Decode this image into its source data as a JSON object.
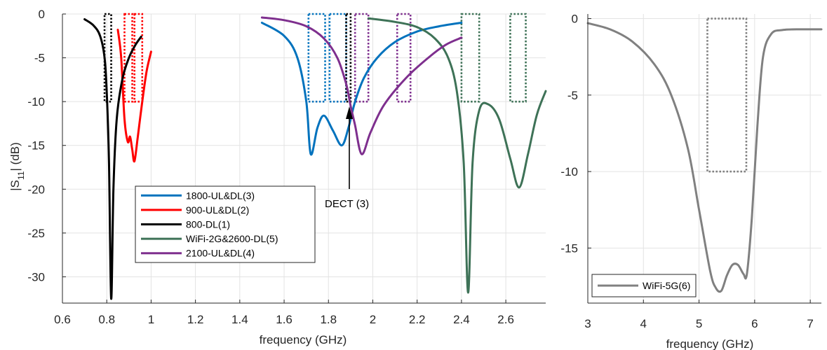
{
  "chart_data": [
    {
      "type": "line",
      "xlabel": "frequency (GHz)",
      "ylabel": "|S11| (dB)",
      "xlim": [
        0.6,
        2.78
      ],
      "ylim": [
        -33,
        0
      ],
      "xticks": [
        "0.6",
        "0.8",
        "1",
        "1.2",
        "1.4",
        "1.6",
        "1.8",
        "2",
        "2.2",
        "2.4",
        "2.6"
      ],
      "yticks": [
        "0",
        "-5",
        "-10",
        "-15",
        "-20",
        "-25",
        "-30"
      ],
      "grid": true,
      "legend_position": "lower-left-center",
      "series": [
        {
          "name": "1800-UL&DL(3)",
          "color": "#0072BD",
          "points": [
            [
              1.5,
              -1.0
            ],
            [
              1.6,
              -2.5
            ],
            [
              1.66,
              -5
            ],
            [
              1.7,
              -10
            ],
            [
              1.72,
              -16
            ],
            [
              1.75,
              -13
            ],
            [
              1.78,
              -11.6
            ],
            [
              1.82,
              -13.3
            ],
            [
              1.86,
              -15
            ],
            [
              1.89,
              -13
            ],
            [
              1.92,
              -10
            ],
            [
              1.96,
              -7.3
            ],
            [
              2.02,
              -5
            ],
            [
              2.1,
              -3.2
            ],
            [
              2.2,
              -2.0
            ],
            [
              2.3,
              -1.4
            ],
            [
              2.4,
              -1.0
            ]
          ]
        },
        {
          "name": "900-UL&DL(2)",
          "color": "#FF0000",
          "points": [
            [
              0.85,
              -1.8
            ],
            [
              0.865,
              -5
            ],
            [
              0.88,
              -12
            ],
            [
              0.895,
              -14.6
            ],
            [
              0.905,
              -14
            ],
            [
              0.915,
              -15.5
            ],
            [
              0.925,
              -16.8
            ],
            [
              0.94,
              -14
            ],
            [
              0.96,
              -10
            ],
            [
              0.98,
              -6.5
            ],
            [
              1.0,
              -4.3
            ]
          ]
        },
        {
          "name": "800-DL(1)",
          "color": "#000000",
          "points": [
            [
              0.7,
              -0.6
            ],
            [
              0.74,
              -1.3
            ],
            [
              0.77,
              -2.5
            ],
            [
              0.79,
              -5
            ],
            [
              0.8,
              -9
            ],
            [
              0.81,
              -17
            ],
            [
              0.82,
              -32.5
            ],
            [
              0.83,
              -20
            ],
            [
              0.845,
              -12
            ],
            [
              0.87,
              -7.5
            ],
            [
              0.9,
              -5
            ],
            [
              0.93,
              -3.5
            ],
            [
              0.955,
              -2.6
            ]
          ]
        },
        {
          "name": "WiFi-2G&2600-DL(5)",
          "color": "#3E7257",
          "points": [
            [
              1.98,
              -0.5
            ],
            [
              2.1,
              -0.9
            ],
            [
              2.2,
              -1.5
            ],
            [
              2.28,
              -2.8
            ],
            [
              2.34,
              -5
            ],
            [
              2.38,
              -9
            ],
            [
              2.41,
              -17
            ],
            [
              2.43,
              -31.8
            ],
            [
              2.45,
              -17
            ],
            [
              2.48,
              -11
            ],
            [
              2.52,
              -10.3
            ],
            [
              2.57,
              -12
            ],
            [
              2.62,
              -16.5
            ],
            [
              2.66,
              -19.8
            ],
            [
              2.7,
              -16
            ],
            [
              2.74,
              -11.5
            ],
            [
              2.78,
              -8.8
            ]
          ]
        },
        {
          "name": "2100-UL&DL(4)",
          "color": "#7E2F8E",
          "points": [
            [
              1.5,
              -0.4
            ],
            [
              1.6,
              -0.7
            ],
            [
              1.7,
              -1.4
            ],
            [
              1.78,
              -2.8
            ],
            [
              1.84,
              -5
            ],
            [
              1.88,
              -8
            ],
            [
              1.9,
              -10.5
            ],
            [
              1.92,
              -12.7
            ],
            [
              1.95,
              -16
            ],
            [
              1.99,
              -13.5
            ],
            [
              2.05,
              -10.4
            ],
            [
              2.15,
              -7.3
            ],
            [
              2.25,
              -5
            ],
            [
              2.33,
              -3.5
            ],
            [
              2.4,
              -2.7
            ]
          ]
        }
      ],
      "bands": [
        {
          "color": "#000000",
          "x": [
            0.79,
            0.82
          ],
          "y": [
            -10,
            0
          ]
        },
        {
          "color": "#FF0000",
          "x": [
            0.88,
            0.915
          ],
          "y": [
            -10,
            0
          ]
        },
        {
          "color": "#FF0000",
          "x": [
            0.925,
            0.96
          ],
          "y": [
            -10,
            0
          ]
        },
        {
          "color": "#0072BD",
          "x": [
            1.71,
            1.785
          ],
          "y": [
            -10,
            0
          ]
        },
        {
          "color": "#0072BD",
          "x": [
            1.805,
            1.88
          ],
          "y": [
            -10,
            0
          ]
        },
        {
          "color": "#000000",
          "x": [
            1.88,
            1.9
          ],
          "y": [
            -10,
            0
          ]
        },
        {
          "color": "#7E2F8E",
          "x": [
            1.92,
            1.98
          ],
          "y": [
            -10,
            0
          ]
        },
        {
          "color": "#7E2F8E",
          "x": [
            2.11,
            2.17
          ],
          "y": [
            -10,
            0
          ]
        },
        {
          "color": "#3E7257",
          "x": [
            2.4,
            2.48
          ],
          "y": [
            -10,
            0
          ]
        },
        {
          "color": "#3E7257",
          "x": [
            2.62,
            2.69
          ],
          "y": [
            -10,
            0
          ]
        }
      ],
      "annotation": {
        "text": "DECT (3)",
        "x": 1.89,
        "y": -10
      }
    },
    {
      "type": "line",
      "xlabel": "frequency (GHz)",
      "ylabel": "",
      "xlim": [
        3,
        7.2
      ],
      "ylim": [
        -18.6,
        0.3
      ],
      "xticks": [
        "3",
        "4",
        "5",
        "6",
        "7"
      ],
      "yticks": [
        "0",
        "-5",
        "-10",
        "-15"
      ],
      "grid": true,
      "legend_position": "lower-left",
      "series": [
        {
          "name": "WiFi-5G(6)",
          "color": "#808080",
          "points": [
            [
              3.0,
              -0.3
            ],
            [
              3.4,
              -0.7
            ],
            [
              3.8,
              -1.5
            ],
            [
              4.2,
              -3.0
            ],
            [
              4.5,
              -5.0
            ],
            [
              4.8,
              -8.5
            ],
            [
              5.0,
              -12.5
            ],
            [
              5.2,
              -16.5
            ],
            [
              5.3,
              -17.6
            ],
            [
              5.4,
              -17.8
            ],
            [
              5.5,
              -16.8
            ],
            [
              5.6,
              -16.1
            ],
            [
              5.7,
              -16.1
            ],
            [
              5.8,
              -16.7
            ],
            [
              5.86,
              -16.7
            ],
            [
              5.95,
              -13
            ],
            [
              6.05,
              -7
            ],
            [
              6.15,
              -2.5
            ],
            [
              6.3,
              -1.0
            ],
            [
              6.5,
              -0.75
            ],
            [
              6.8,
              -0.7
            ],
            [
              7.2,
              -0.7
            ]
          ]
        }
      ],
      "bands": [
        {
          "color": "#808080",
          "x": [
            5.15,
            5.85
          ],
          "y": [
            -10,
            0
          ]
        }
      ]
    }
  ]
}
